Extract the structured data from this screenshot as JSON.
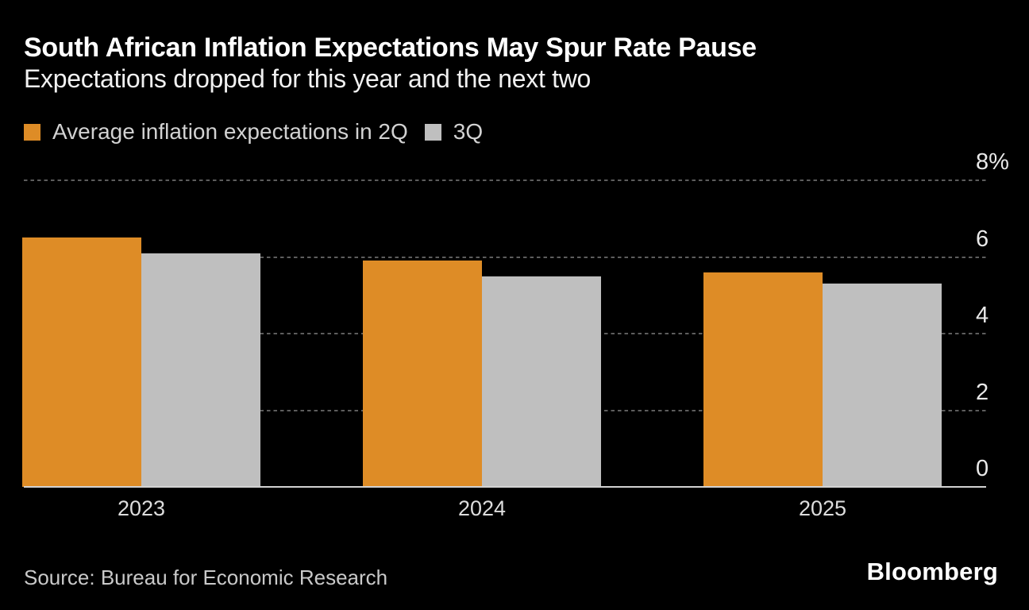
{
  "header": {
    "title": "South African Inflation Expectations May Spur Rate Pause",
    "subtitle": "Expectations dropped for this year and the next two"
  },
  "legend": {
    "items": [
      {
        "label": "Average inflation expectations in 2Q",
        "color": "#de8c26"
      },
      {
        "label": "3Q",
        "color": "#bfbfbf"
      }
    ]
  },
  "chart_data": {
    "type": "bar",
    "categories": [
      "2023",
      "2024",
      "2025"
    ],
    "series": [
      {
        "name": "Average inflation expectations in 2Q",
        "key": "2q",
        "color": "#de8c26",
        "values": [
          6.5,
          5.9,
          5.6
        ]
      },
      {
        "name": "3Q",
        "key": "3q",
        "color": "#bfbfbf",
        "values": [
          6.1,
          5.5,
          5.3
        ]
      }
    ],
    "title": "South African Inflation Expectations May Spur Rate Pause",
    "xlabel": "",
    "ylabel": "",
    "ylim": [
      0,
      8
    ],
    "yticks": {
      "values": [
        0,
        2,
        4,
        6,
        8
      ],
      "labels": [
        "0",
        "2",
        "4",
        "6",
        "8%"
      ]
    },
    "grid": "horizontal-dashed",
    "legend_position": "top-left"
  },
  "footer": {
    "source": "Source: Bureau for Economic Research",
    "brand": "Bloomberg"
  },
  "colors": {
    "background": "#000000",
    "title": "#ffffff",
    "subtitle": "#f1f1f1",
    "legend_text": "#d2d2d2",
    "gridline": "#5d5d5d",
    "baseline": "#d2d2d2",
    "axis_label": "#e9e9e9",
    "source_text": "#c9c9c9",
    "bar_2q": "#de8c26",
    "bar_3q": "#bfbfbf"
  }
}
